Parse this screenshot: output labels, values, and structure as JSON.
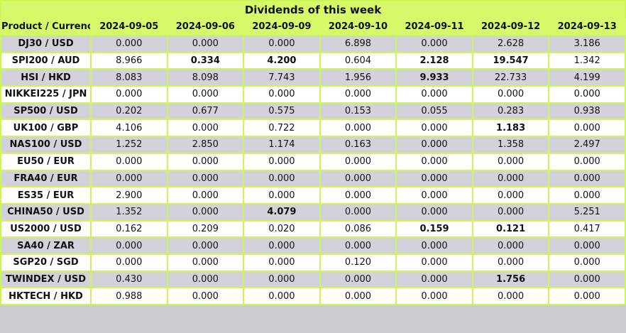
{
  "title": "Dividends of this week",
  "colors": {
    "header_bg": "#d5f969",
    "grid": "#cdf556",
    "row_alt_bg": "#d2d3da",
    "row_bg": "#ffffff",
    "text": "#111111"
  },
  "table": {
    "product_header": "Product / Currency",
    "date_headers": [
      "2024-09-05",
      "2024-09-06",
      "2024-09-09",
      "2024-09-10",
      "2024-09-11",
      "2024-09-12",
      "2024-09-13"
    ],
    "rows": [
      {
        "product": "DJ30 / USD",
        "values": [
          "0.000",
          "0.000",
          "0.000",
          "6.898",
          "0.000",
          "2.628",
          "3.186"
        ],
        "bold": [
          false,
          false,
          false,
          false,
          false,
          false,
          false
        ]
      },
      {
        "product": "SPI200 / AUD",
        "values": [
          "8.966",
          "0.334",
          "4.200",
          "0.604",
          "2.128",
          "19.547",
          "1.342"
        ],
        "bold": [
          false,
          true,
          true,
          false,
          true,
          true,
          false
        ]
      },
      {
        "product": "HSI / HKD",
        "values": [
          "8.083",
          "8.098",
          "7.743",
          "1.956",
          "9.933",
          "22.733",
          "4.199"
        ],
        "bold": [
          false,
          false,
          false,
          false,
          true,
          false,
          false
        ]
      },
      {
        "product": "NIKKEI225 / JPN",
        "values": [
          "0.000",
          "0.000",
          "0.000",
          "0.000",
          "0.000",
          "0.000",
          "0.000"
        ],
        "bold": [
          false,
          false,
          false,
          false,
          false,
          false,
          false
        ]
      },
      {
        "product": "SP500 / USD",
        "values": [
          "0.202",
          "0.677",
          "0.575",
          "0.153",
          "0.055",
          "0.283",
          "0.938"
        ],
        "bold": [
          false,
          false,
          false,
          false,
          false,
          false,
          false
        ]
      },
      {
        "product": "UK100 / GBP",
        "values": [
          "4.106",
          "0.000",
          "0.722",
          "0.000",
          "0.000",
          "1.183",
          "0.000"
        ],
        "bold": [
          false,
          false,
          false,
          false,
          false,
          true,
          false
        ]
      },
      {
        "product": "NAS100 / USD",
        "values": [
          "1.252",
          "2.850",
          "1.174",
          "0.163",
          "0.000",
          "1.358",
          "2.497"
        ],
        "bold": [
          false,
          false,
          false,
          false,
          false,
          false,
          false
        ]
      },
      {
        "product": "EU50 / EUR",
        "values": [
          "0.000",
          "0.000",
          "0.000",
          "0.000",
          "0.000",
          "0.000",
          "0.000"
        ],
        "bold": [
          false,
          false,
          false,
          false,
          false,
          false,
          false
        ]
      },
      {
        "product": "FRA40 / EUR",
        "values": [
          "0.000",
          "0.000",
          "0.000",
          "0.000",
          "0.000",
          "0.000",
          "0.000"
        ],
        "bold": [
          false,
          false,
          false,
          false,
          false,
          false,
          false
        ]
      },
      {
        "product": "ES35 / EUR",
        "values": [
          "2.900",
          "0.000",
          "0.000",
          "0.000",
          "0.000",
          "0.000",
          "0.000"
        ],
        "bold": [
          false,
          false,
          false,
          false,
          false,
          false,
          false
        ]
      },
      {
        "product": "CHINA50 / USD",
        "values": [
          "1.352",
          "0.000",
          "4.079",
          "0.000",
          "0.000",
          "0.000",
          "5.251"
        ],
        "bold": [
          false,
          false,
          true,
          false,
          false,
          false,
          false
        ]
      },
      {
        "product": "US2000 / USD",
        "values": [
          "0.162",
          "0.209",
          "0.020",
          "0.086",
          "0.159",
          "0.121",
          "0.417"
        ],
        "bold": [
          false,
          false,
          false,
          false,
          true,
          true,
          false
        ]
      },
      {
        "product": "SA40 / ZAR",
        "values": [
          "0.000",
          "0.000",
          "0.000",
          "0.000",
          "0.000",
          "0.000",
          "0.000"
        ],
        "bold": [
          false,
          false,
          false,
          false,
          false,
          false,
          false
        ]
      },
      {
        "product": "SGP20 / SGD",
        "values": [
          "0.000",
          "0.000",
          "0.000",
          "0.120",
          "0.000",
          "0.000",
          "0.000"
        ],
        "bold": [
          false,
          false,
          false,
          false,
          false,
          false,
          false
        ]
      },
      {
        "product": "TWINDEX / USD",
        "values": [
          "0.430",
          "0.000",
          "0.000",
          "0.000",
          "0.000",
          "1.756",
          "0.000"
        ],
        "bold": [
          false,
          false,
          false,
          false,
          false,
          true,
          false
        ]
      },
      {
        "product": "HKTECH / HKD",
        "values": [
          "0.988",
          "0.000",
          "0.000",
          "0.000",
          "0.000",
          "0.000",
          "0.000"
        ],
        "bold": [
          false,
          false,
          false,
          false,
          false,
          false,
          false
        ]
      }
    ]
  }
}
